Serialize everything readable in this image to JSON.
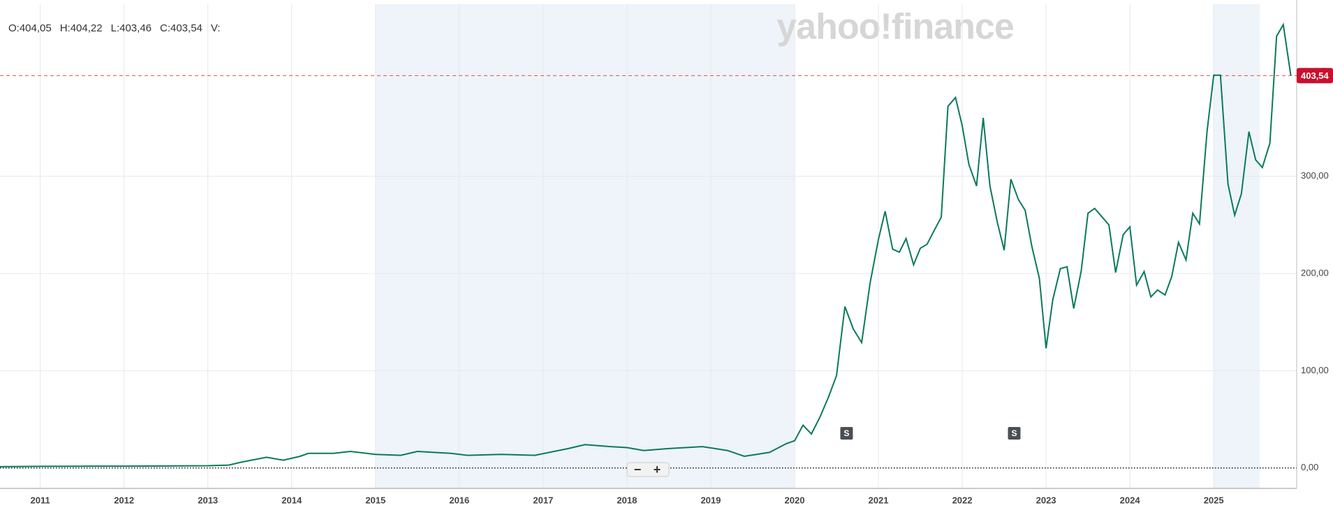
{
  "chart_data": {
    "type": "line",
    "header": [
      "O:404,05",
      "H:404,22",
      "L:403,46",
      "C:403,54",
      "V:"
    ],
    "watermark": "yahoo!finance",
    "x": [
      2010.52,
      2011,
      2011.5,
      2012,
      2012.5,
      2013,
      2013.25,
      2013.4,
      2013.7,
      2013.9,
      2014.1,
      2014.2,
      2014.5,
      2014.7,
      2015,
      2015.3,
      2015.5,
      2015.9,
      2016.1,
      2016.5,
      2016.9,
      2017.3,
      2017.5,
      2017.8,
      2018,
      2018.2,
      2018.5,
      2018.9,
      2019.2,
      2019.4,
      2019.7,
      2019.9,
      2020,
      2020.1,
      2020.2,
      2020.3,
      2020.4,
      2020.5,
      2020.6,
      2020.7,
      2020.8,
      2020.9,
      2021,
      2021.08,
      2021.17,
      2021.25,
      2021.33,
      2021.42,
      2021.5,
      2021.58,
      2021.67,
      2021.75,
      2021.83,
      2021.92,
      2022,
      2022.08,
      2022.17,
      2022.25,
      2022.33,
      2022.42,
      2022.5,
      2022.58,
      2022.67,
      2022.75,
      2022.83,
      2022.92,
      2023,
      2023.08,
      2023.17,
      2023.25,
      2023.33,
      2023.42,
      2023.5,
      2023.58,
      2023.67,
      2023.75,
      2023.83,
      2023.92,
      2024,
      2024.08,
      2024.17,
      2024.25,
      2024.33,
      2024.42,
      2024.5,
      2024.58,
      2024.67,
      2024.75,
      2024.83,
      2024.92,
      2025,
      2025.08,
      2025.17,
      2025.25,
      2025.33,
      2025.42,
      2025.5,
      2025.58,
      2025.67,
      2025.75,
      2025.83,
      2025.92
    ],
    "series": [
      {
        "color": "#0a7a5a",
        "values": [
          1.3,
          1.7,
          1.8,
          1.9,
          2,
          2.3,
          3,
          6,
          11,
          8,
          12,
          15,
          15,
          17,
          14,
          13,
          17,
          15,
          13,
          14,
          13,
          20,
          24,
          22,
          21,
          18,
          20,
          22,
          18,
          12,
          16,
          25,
          28,
          44,
          35,
          52,
          72,
          95,
          166,
          143,
          129,
          190,
          235,
          264,
          225,
          222,
          236,
          209,
          226,
          230,
          245,
          258,
          372,
          381,
          352,
          312,
          290,
          360,
          290,
          252,
          224,
          297,
          276,
          265,
          228,
          195,
          123,
          173,
          205,
          207,
          164,
          203,
          262,
          267,
          258,
          250,
          201,
          240,
          248,
          188,
          202,
          176,
          183,
          178,
          197,
          232,
          214,
          262,
          251,
          346,
          404,
          404,
          292,
          260,
          282,
          346,
          317,
          309,
          334,
          444,
          456,
          403.54
        ]
      }
    ],
    "last_price": {
      "value": 403.54,
      "label": "403,54"
    },
    "xlim": [
      2010.52,
      2025.99
    ],
    "xticks": [
      2011,
      2012,
      2013,
      2014,
      2015,
      2016,
      2017,
      2018,
      2019,
      2020,
      2021,
      2022,
      2023,
      2024,
      2025
    ],
    "ylim": [
      -21,
      477
    ],
    "yticks": [
      {
        "value": 0,
        "label": "0,00"
      },
      {
        "value": 100,
        "label": "100,00"
      },
      {
        "value": 200,
        "label": "200,00"
      },
      {
        "value": 300,
        "label": "300,00"
      }
    ],
    "highlight_ranges": [
      [
        2015,
        2020
      ],
      [
        2025,
        2025.55
      ]
    ],
    "events": [
      {
        "x": 2020.62,
        "label": "S"
      },
      {
        "x": 2022.62,
        "label": "S"
      }
    ],
    "zoom_controls": [
      "−",
      "+"
    ],
    "grid": true
  }
}
